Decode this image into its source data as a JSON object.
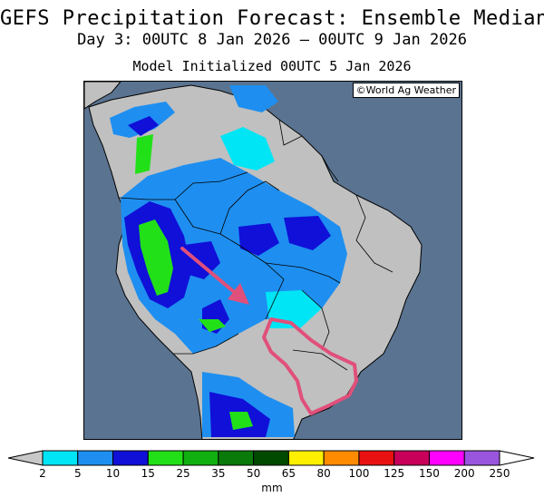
{
  "header": {
    "title": "GEFS Precipitation Forecast: Ensemble Median",
    "subtitle": "Day 3: 00UTC 8 Jan 2026 — 00UTC 9 Jan 2026",
    "init": "Model Initialized 00UTC 5 Jan 2026"
  },
  "map": {
    "credit": "©World Ag Weather",
    "ocean_color": "#5a7390",
    "land_color": "#c0c0c0",
    "annotation_color": "#e0507a"
  },
  "legend": {
    "units": "mm",
    "ticks": [
      "2",
      "5",
      "10",
      "15",
      "25",
      "35",
      "50",
      "65",
      "80",
      "100",
      "125",
      "150",
      "200",
      "250"
    ],
    "colors": [
      "#00e5f5",
      "#1e8ff0",
      "#1010d8",
      "#22e018",
      "#10b010",
      "#0a7a0a",
      "#004a00",
      "#fff000",
      "#ff8c00",
      "#e81010",
      "#c8005a",
      "#ff00ff",
      "#9955dd"
    ],
    "below_color": "#c8c8c8",
    "above_color": "#ffffff"
  }
}
